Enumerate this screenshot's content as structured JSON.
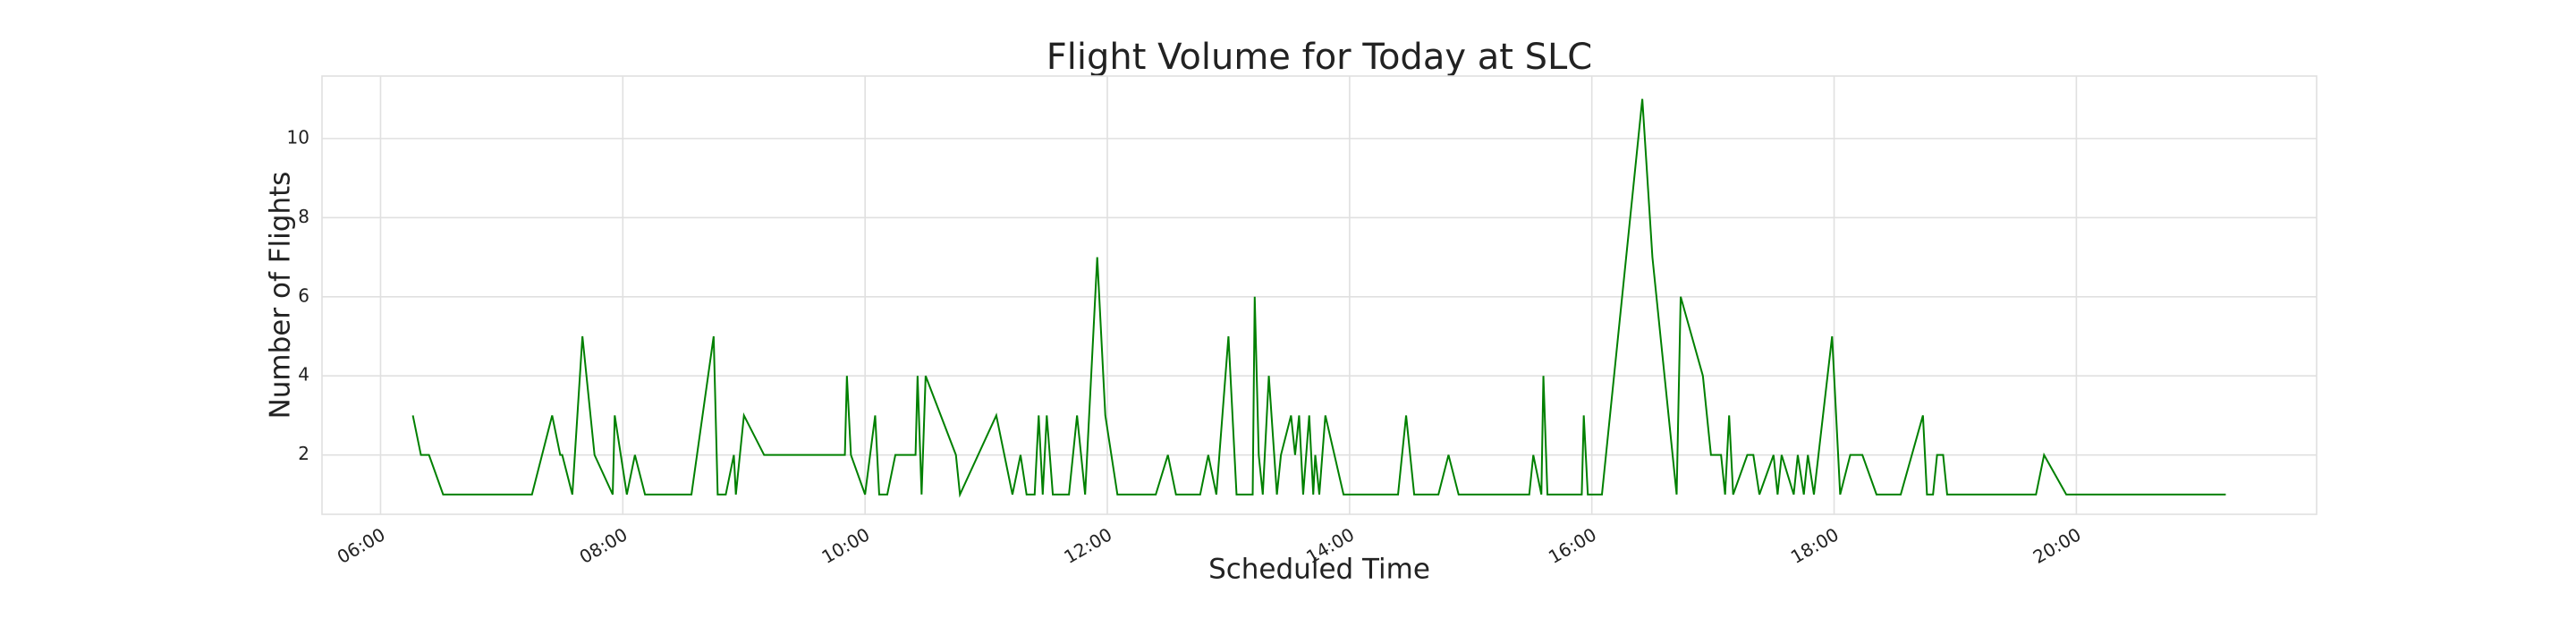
{
  "chart_data": {
    "type": "line",
    "title": "Flight Volume for Today at SLC",
    "x_label": "Scheduled Time",
    "y_label": "Number of Flights",
    "color": "#008000",
    "grid": true,
    "xlim": [
      331,
      1319
    ],
    "ylim": [
      0.5,
      11.58
    ],
    "xticks": [
      {
        "value": 360,
        "label": "06:00"
      },
      {
        "value": 480,
        "label": "08:00"
      },
      {
        "value": 600,
        "label": "10:00"
      },
      {
        "value": 720,
        "label": "12:00"
      },
      {
        "value": 840,
        "label": "14:00"
      },
      {
        "value": 960,
        "label": "16:00"
      },
      {
        "value": 1080,
        "label": "18:00"
      },
      {
        "value": 1200,
        "label": "20:00"
      }
    ],
    "yticks": [
      2,
      4,
      6,
      8,
      10
    ],
    "x": [
      376,
      380,
      384,
      391,
      435,
      445,
      449,
      450,
      455,
      460,
      466,
      475,
      476,
      482,
      486,
      491,
      514,
      525,
      527,
      531,
      535,
      536,
      540,
      550,
      590,
      591,
      593,
      600,
      605,
      607,
      611,
      615,
      625,
      626,
      628,
      630,
      645,
      647,
      665,
      673,
      677,
      680,
      684,
      686,
      688,
      690,
      693,
      701,
      705,
      709,
      715,
      719,
      725,
      744,
      750,
      754,
      766,
      770,
      774,
      780,
      784,
      792,
      793,
      795,
      797,
      800,
      804,
      806,
      811,
      813,
      815,
      817,
      820,
      822,
      823,
      825,
      828,
      837,
      864,
      868,
      872,
      884,
      889,
      894,
      929,
      931,
      935,
      936,
      938,
      955,
      956,
      958,
      965,
      985,
      990,
      1002,
      1004,
      1015,
      1019,
      1024,
      1026,
      1028,
      1030,
      1037,
      1040,
      1043,
      1050,
      1052,
      1054,
      1060,
      1062,
      1065,
      1067,
      1070,
      1079,
      1083,
      1088,
      1094,
      1101,
      1113,
      1124,
      1126,
      1129,
      1131,
      1134,
      1136,
      1180,
      1184,
      1195,
      1274
    ],
    "values": [
      3,
      2,
      2,
      1,
      1,
      3,
      2,
      2,
      1,
      5,
      2,
      1,
      3,
      1,
      2,
      1,
      1,
      5,
      1,
      1,
      2,
      1,
      3,
      2,
      2,
      4,
      2,
      1,
      3,
      1,
      1,
      2,
      2,
      4,
      1,
      4,
      2,
      1,
      3,
      1,
      2,
      1,
      1,
      3,
      1,
      3,
      1,
      1,
      3,
      1,
      7,
      3,
      1,
      1,
      2,
      1,
      1,
      2,
      1,
      5,
      1,
      1,
      6,
      2,
      1,
      4,
      1,
      2,
      3,
      2,
      3,
      1,
      3,
      1,
      2,
      1,
      3,
      1,
      1,
      3,
      1,
      1,
      2,
      1,
      1,
      2,
      1,
      4,
      1,
      1,
      3,
      1,
      1,
      11,
      7,
      1,
      6,
      4,
      2,
      2,
      1,
      3,
      1,
      2,
      2,
      1,
      2,
      1,
      2,
      1,
      2,
      1,
      2,
      1,
      5,
      1,
      2,
      2,
      1,
      1,
      3,
      1,
      1,
      2,
      2,
      1,
      1,
      2,
      1,
      1
    ]
  }
}
